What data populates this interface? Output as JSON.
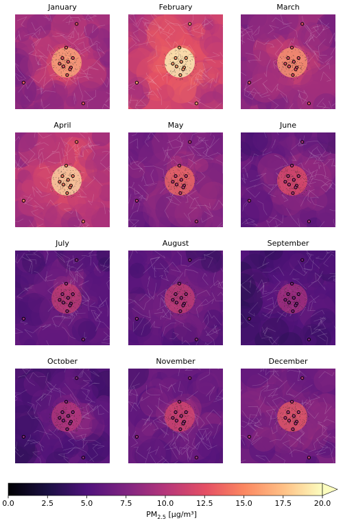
{
  "panels": [
    {
      "title": "January",
      "intensity": 11.5
    },
    {
      "title": "February",
      "intensity": 14.5
    },
    {
      "title": "March",
      "intensity": 11.0
    },
    {
      "title": "April",
      "intensity": 13.0
    },
    {
      "title": "May",
      "intensity": 9.5
    },
    {
      "title": "June",
      "intensity": 8.5
    },
    {
      "title": "July",
      "intensity": 7.5
    },
    {
      "title": "August",
      "intensity": 7.5
    },
    {
      "title": "September",
      "intensity": 6.5
    },
    {
      "title": "October",
      "intensity": 7.0
    },
    {
      "title": "November",
      "intensity": 8.0
    },
    {
      "title": "December",
      "intensity": 9.0
    }
  ],
  "colorbar": {
    "min": 0.0,
    "max": 20.0,
    "ticks": [
      "0.0",
      "2.5",
      "5.0",
      "7.5",
      "10.0",
      "12.5",
      "15.0",
      "17.5",
      "20.0"
    ],
    "label_main": "PM",
    "label_sub": "2.5",
    "label_units": "[μg/m³]",
    "extend": "max",
    "colormap": "magma"
  },
  "chart_data": {
    "type": "heatmap",
    "series_names": [
      "January",
      "February",
      "March",
      "April",
      "May",
      "June",
      "July",
      "August",
      "September",
      "October",
      "November",
      "December"
    ],
    "color_range": [
      0,
      20
    ],
    "colorbar_label": "PM2.5 [μg/m³]"
  }
}
